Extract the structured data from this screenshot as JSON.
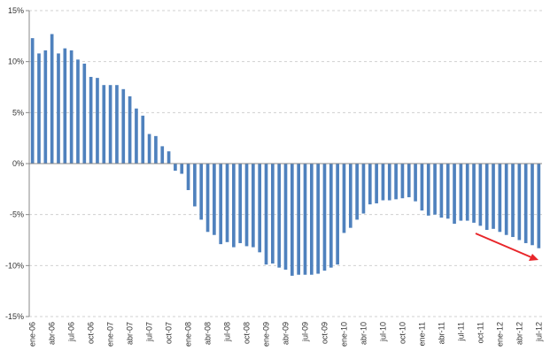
{
  "chart_data": {
    "type": "bar",
    "categories": [
      "ene-06",
      null,
      null,
      "abr-06",
      null,
      null,
      "jul-06",
      null,
      null,
      "oct-06",
      null,
      null,
      "ene-07",
      null,
      null,
      "abr-07",
      null,
      null,
      "jul-07",
      null,
      null,
      "oct-07",
      null,
      null,
      "ene-08",
      null,
      null,
      "abr-08",
      null,
      null,
      "jul-08",
      null,
      null,
      "oct-08",
      null,
      null,
      "ene-09",
      null,
      null,
      "abr-09",
      null,
      null,
      "jul-09",
      null,
      null,
      "oct-09",
      null,
      null,
      "ene-10",
      null,
      null,
      "abr-10",
      null,
      null,
      "jul-10",
      null,
      null,
      "oct-10",
      null,
      null,
      "ene-11",
      null,
      null,
      "abr-11",
      null,
      null,
      "jul-11",
      null,
      null,
      "oct-11",
      null,
      null,
      "ene-12",
      null,
      null,
      "abr-12",
      null,
      null,
      "jul-12"
    ],
    "values": [
      12.3,
      10.8,
      11.1,
      12.7,
      10.8,
      11.3,
      11.1,
      10.2,
      9.8,
      8.5,
      8.4,
      7.7,
      7.7,
      7.7,
      7.3,
      6.6,
      5.4,
      4.7,
      2.9,
      2.7,
      1.7,
      1.2,
      -0.7,
      -1.0,
      -2.6,
      -4.2,
      -5.5,
      -6.7,
      -7.0,
      -7.9,
      -7.7,
      -8.2,
      -7.8,
      -8.1,
      -8.2,
      -8.7,
      -9.9,
      -9.8,
      -10.2,
      -10.4,
      -11.0,
      -10.9,
      -10.9,
      -10.9,
      -10.8,
      -10.5,
      -10.2,
      -9.9,
      -6.8,
      -6.3,
      -5.5,
      -4.9,
      -4.0,
      -3.9,
      -3.6,
      -3.6,
      -3.5,
      -3.4,
      -3.3,
      -3.7,
      -4.6,
      -5.1,
      -5.0,
      -5.3,
      -5.4,
      -5.9,
      -5.6,
      -5.6,
      -5.8,
      -6.1,
      -6.5,
      -6.4,
      -6.7,
      -7.0,
      -7.2,
      -7.5,
      -7.8,
      -8.0,
      -8.3
    ],
    "color": "#4f81bd",
    "ylim": [
      -15,
      15
    ],
    "yticks": [
      {
        "value": -15,
        "label": "-15%"
      },
      {
        "value": -10,
        "label": "-10%"
      },
      {
        "value": -5,
        "label": "-5%"
      },
      {
        "value": 0,
        "label": "0%"
      },
      {
        "value": 5,
        "label": "5%"
      },
      {
        "value": 10,
        "label": "10%"
      },
      {
        "value": 15,
        "label": "15%"
      }
    ],
    "grid": true
  }
}
